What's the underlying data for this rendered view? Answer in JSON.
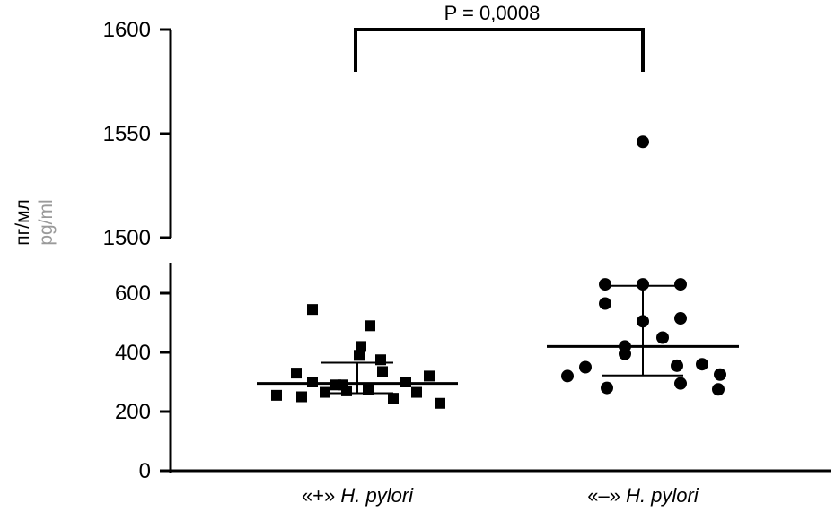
{
  "chart_data": {
    "type": "scatter",
    "categories": [
      "«+» H. pylori",
      "«–» H. pylori"
    ],
    "category_markup": [
      {
        "prefix": "«+» ",
        "italic": "H. pylori"
      },
      {
        "prefix": "«–» ",
        "italic": "H. pylori"
      }
    ],
    "ylabel": [
      "пг/мл",
      "pg/ml"
    ],
    "y_axis": {
      "segments": [
        {
          "range": [
            0,
            650
          ],
          "ticks": [
            0,
            200,
            400,
            600
          ]
        },
        {
          "range": [
            1500,
            1600
          ],
          "ticks": [
            1500,
            1550,
            1600
          ]
        }
      ],
      "tick_labels": [
        "0",
        "200",
        "400",
        "600",
        "1500",
        "1550",
        "1600"
      ],
      "broken": true
    },
    "series": [
      {
        "marker": "square",
        "values": [
          545,
          490,
          420,
          390,
          375,
          335,
          330,
          320,
          300,
          300,
          290,
          290,
          275,
          270,
          265,
          265,
          255,
          250,
          245,
          228
        ]
      },
      {
        "marker": "circle",
        "values": [
          1546,
          630,
          630,
          630,
          565,
          515,
          505,
          450,
          420,
          395,
          360,
          355,
          350,
          325,
          320,
          295,
          280,
          275
        ]
      }
    ],
    "summary": [
      {
        "center": 295,
        "upper": 365,
        "lower": 262
      },
      {
        "center": 420,
        "upper": 625,
        "lower": 322
      }
    ],
    "annotation": {
      "text": "P = 0,0008",
      "between": [
        0,
        1
      ]
    },
    "legend": "none",
    "grid": false
  }
}
